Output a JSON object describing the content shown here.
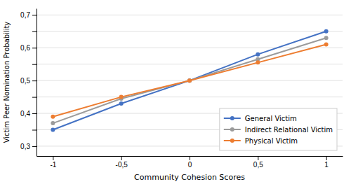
{
  "chart_data": {
    "type": "line",
    "x": [
      -1,
      -0.5,
      0,
      0.5,
      1
    ],
    "series": [
      {
        "name": "General Victim",
        "color": "#4472C4",
        "values": [
          0.35,
          0.43,
          0.5,
          0.58,
          0.65
        ]
      },
      {
        "name": "Indirect Relational Victim",
        "color": "#9B9B9B",
        "values": [
          0.37,
          0.445,
          0.5,
          0.565,
          0.63
        ]
      },
      {
        "name": "Physical Victim",
        "color": "#ED7D31",
        "values": [
          0.39,
          0.45,
          0.5,
          0.555,
          0.61
        ]
      }
    ],
    "x_label": "Community Cohesion Scores",
    "y_label": "Victim Peer Nomination Probability",
    "xlim": [
      -1.12,
      1.12
    ],
    "xticks": [
      -1,
      {
        "value": -0.5,
        "label": "-0,5"
      },
      0,
      {
        "value": 0.5,
        "label": "0,5"
      },
      1
    ],
    "ylim": [
      0.27,
      0.72
    ],
    "yticks": [
      {
        "value": 0.3,
        "label": "0,3"
      },
      {
        "value": 0.35,
        "label": null
      },
      {
        "value": 0.4,
        "label": "0,4"
      },
      {
        "value": 0.45,
        "label": null
      },
      {
        "value": 0.5,
        "label": "0,5"
      },
      {
        "value": 0.55,
        "label": null
      },
      {
        "value": 0.6,
        "label": "0,6"
      },
      {
        "value": 0.65,
        "label": null
      },
      {
        "value": 0.7,
        "label": "0,7"
      }
    ],
    "grid": true,
    "legend": "lower right",
    "marker": "circle"
  }
}
